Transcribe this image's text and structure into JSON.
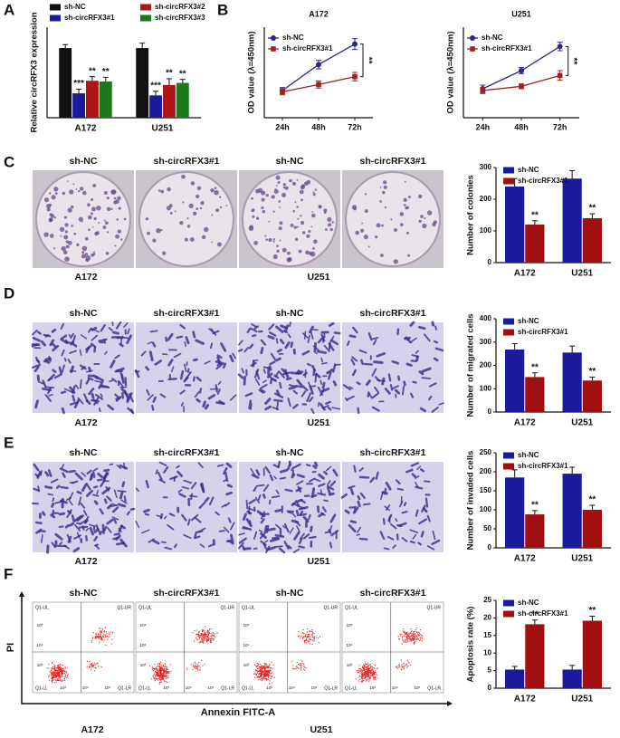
{
  "chart_data": [
    {
      "type": "bar",
      "panel": "A",
      "ylabel": "Relative circRFX3 expression",
      "categories": [
        "A172",
        "U251"
      ],
      "ylim": [
        0,
        1.3
      ],
      "series": [
        {
          "name": "sh-NC",
          "color": "#111111",
          "values": [
            1.0,
            1.0
          ],
          "errors": [
            0.05,
            0.07
          ],
          "sig": [
            null,
            null
          ]
        },
        {
          "name": "sh-circRFX3#1",
          "color": "#1a1a9c",
          "values": [
            0.35,
            0.32
          ],
          "errors": [
            0.06,
            0.06
          ],
          "sig": [
            "***",
            "***"
          ]
        },
        {
          "name": "sh-circRFX3#2",
          "color": "#b01515",
          "values": [
            0.53,
            0.47
          ],
          "errors": [
            0.06,
            0.09
          ],
          "sig": [
            "**",
            "**"
          ]
        },
        {
          "name": "sh-circRFX3#3",
          "color": "#1a7a1a",
          "values": [
            0.52,
            0.5
          ],
          "errors": [
            0.06,
            0.05
          ],
          "sig": [
            "**",
            "**"
          ]
        }
      ]
    },
    {
      "type": "line",
      "panel": "B",
      "title": "A172",
      "ylabel": "OD value (λ=450nm)",
      "categories": [
        "24h",
        "48h",
        "72h"
      ],
      "ylim": [
        0,
        1.5
      ],
      "annotation": "**",
      "series": [
        {
          "name": "sh-NC",
          "color": "#2a2a8a",
          "values": [
            0.45,
            0.88,
            1.22
          ],
          "errors": [
            0.05,
            0.07,
            0.09
          ]
        },
        {
          "name": "sh-circRFX3#1",
          "color": "#a02020",
          "values": [
            0.43,
            0.55,
            0.68
          ],
          "errors": [
            0.05,
            0.06,
            0.07
          ]
        }
      ]
    },
    {
      "type": "line",
      "title": "U251",
      "ylabel": "OD value (λ=450nm)",
      "categories": [
        "24h",
        "48h",
        "72h"
      ],
      "ylim": [
        0,
        1.5
      ],
      "annotation": "**",
      "series": [
        {
          "name": "sh-NC",
          "color": "#2a2a8a",
          "values": [
            0.48,
            0.78,
            1.18
          ],
          "errors": [
            0.06,
            0.05,
            0.07
          ]
        },
        {
          "name": "sh-circRFX3#1",
          "color": "#a02020",
          "values": [
            0.45,
            0.52,
            0.7
          ],
          "errors": [
            0.05,
            0.04,
            0.08
          ]
        }
      ]
    },
    {
      "type": "bar",
      "ylabel": "Number of colonies",
      "categories": [
        "A172",
        "U251"
      ],
      "ylim": [
        0,
        300
      ],
      "yticks": [
        0,
        100,
        200,
        300
      ],
      "series": [
        {
          "name": "sh-NC",
          "color": "#1a1a9c",
          "values": [
            240,
            265
          ],
          "errors": [
            25,
            25
          ],
          "sig": [
            null,
            null
          ]
        },
        {
          "name": "sh-circRFX3#1",
          "color": "#a01010",
          "values": [
            120,
            140
          ],
          "errors": [
            12,
            14
          ],
          "sig": [
            "**",
            "**"
          ]
        }
      ]
    },
    {
      "type": "bar",
      "ylabel": "Number of migrated cells",
      "categories": [
        "A172",
        "U251"
      ],
      "ylim": [
        0,
        400
      ],
      "yticks": [
        0,
        100,
        200,
        300,
        400
      ],
      "series": [
        {
          "name": "sh-NC",
          "color": "#1a1a9c",
          "values": [
            268,
            255
          ],
          "errors": [
            25,
            28
          ],
          "sig": [
            null,
            null
          ]
        },
        {
          "name": "sh-circRFX3#1",
          "color": "#a01010",
          "values": [
            150,
            135
          ],
          "errors": [
            18,
            15
          ],
          "sig": [
            "**",
            "**"
          ]
        }
      ]
    },
    {
      "type": "bar",
      "ylabel": "Number of invaded cells",
      "categories": [
        "A172",
        "U251"
      ],
      "ylim": [
        0,
        250
      ],
      "yticks": [
        0,
        50,
        100,
        150,
        200,
        250
      ],
      "series": [
        {
          "name": "sh-NC",
          "color": "#1a1a9c",
          "values": [
            185,
            195
          ],
          "errors": [
            20,
            17
          ],
          "sig": [
            null,
            null
          ]
        },
        {
          "name": "sh-circRFX3#1",
          "color": "#a01010",
          "values": [
            88,
            100
          ],
          "errors": [
            10,
            12
          ],
          "sig": [
            "**",
            "**"
          ]
        }
      ]
    },
    {
      "type": "bar",
      "ylabel": "Apoptosis rate (%)",
      "categories": [
        "A172",
        "U251"
      ],
      "ylim": [
        0,
        25
      ],
      "yticks": [
        0,
        5,
        10,
        15,
        20,
        25
      ],
      "series": [
        {
          "name": "sh-NC",
          "color": "#1a1a9c",
          "values": [
            5.3,
            5.3
          ],
          "errors": [
            0.9,
            1.2
          ],
          "sig": [
            null,
            null
          ]
        },
        {
          "name": "sh-circRFX3#1",
          "color": "#a01010",
          "values": [
            18.2,
            19.2
          ],
          "errors": [
            1.2,
            1.3
          ],
          "sig": [
            "**",
            "**"
          ]
        }
      ]
    }
  ],
  "image_panels": [
    {
      "panel": "C",
      "kind": "plate",
      "labels": [
        "sh-NC",
        "sh-circRFX3#1",
        "sh-NC",
        "sh-circRFX3#1"
      ],
      "groups": [
        "A172",
        "U251"
      ]
    },
    {
      "panel": "D",
      "kind": "transwell",
      "labels": [
        "sh-NC",
        "sh-circRFX3#1",
        "sh-NC",
        "sh-circRFX3#1"
      ],
      "groups": [
        "A172",
        "U251"
      ]
    },
    {
      "panel": "E",
      "kind": "transwell",
      "labels": [
        "sh-NC",
        "sh-circRFX3#1",
        "sh-NC",
        "sh-circRFX3#1"
      ],
      "groups": [
        "A172",
        "U251"
      ]
    },
    {
      "panel": "F",
      "kind": "flow",
      "labels": [
        "sh-NC",
        "sh-circRFX3#1",
        "sh-NC",
        "sh-circRFX3#1"
      ],
      "groups": [
        "A172",
        "U251"
      ],
      "x_label": "Annexin FITC-A",
      "y_label": "PI",
      "quadrants": [
        "Q1-UL",
        "Q1-UR",
        "Q1-LL",
        "Q1-LR"
      ],
      "log_ticks": [
        "10³",
        "10⁴",
        "10⁵"
      ]
    }
  ]
}
